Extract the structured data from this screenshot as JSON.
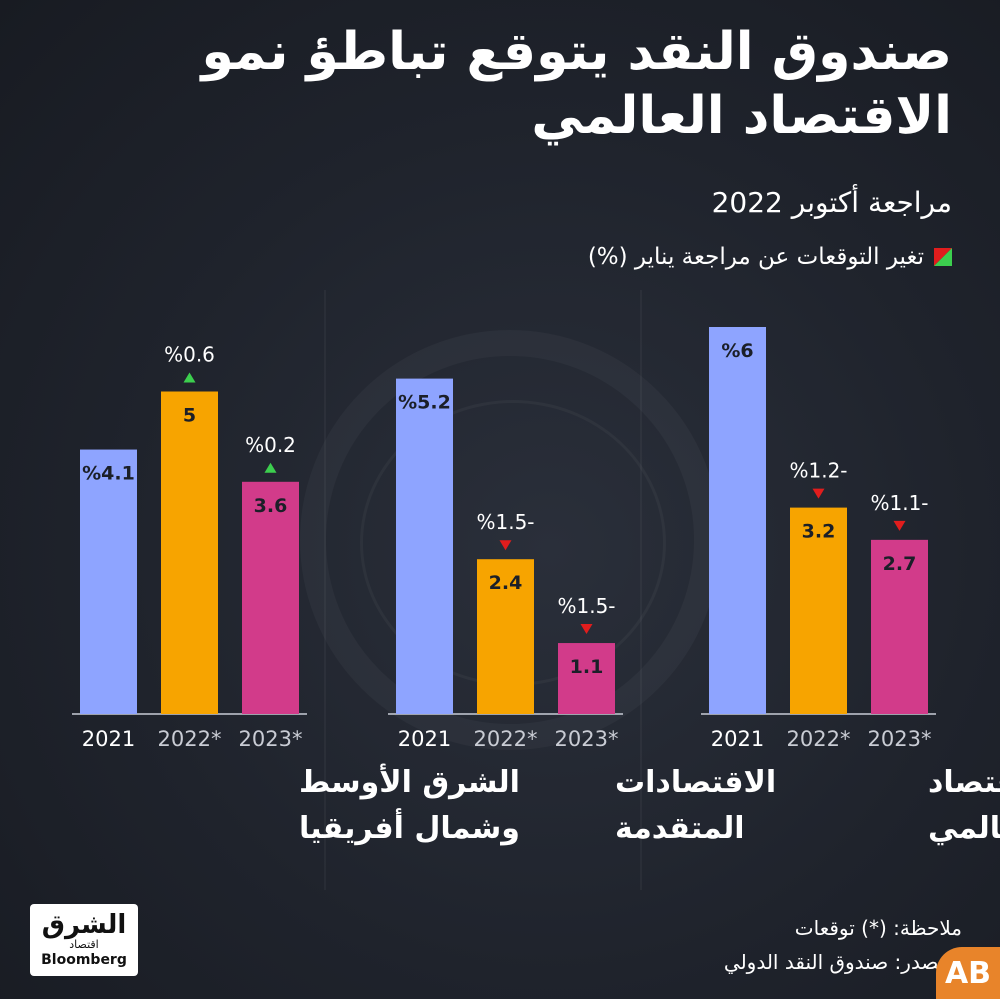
{
  "title": "صندوق النقد يتوقع تباطؤ نمو الاقتصاد العالمي",
  "subtitle": "مراجعة أكتوبر 2022",
  "legend": {
    "label": "تغير التوقعات عن مراجعة يناير (%)"
  },
  "colors": {
    "bar_2021": "#8ea4ff",
    "bar_2022": "#f7a400",
    "bar_2023": "#d23b8a",
    "up": "#3ccf4e",
    "down": "#e11d1d"
  },
  "chart_data": {
    "type": "bar",
    "title": "صندوق النقد يتوقع تباطؤ نمو الاقتصاد العالمي",
    "subtitle": "مراجعة أكتوبر 2022",
    "categories": [
      "2021",
      "2022*",
      "2023*"
    ],
    "groups": [
      {
        "name": "الاقتصاد العالمي",
        "name_lines": [
          "الاقتصاد",
          "العالمي"
        ],
        "values": [
          6,
          3.2,
          2.7
        ],
        "value_labels": [
          "%6",
          "3.2",
          "2.7"
        ],
        "changes": [
          null,
          -1.2,
          -1.1
        ],
        "change_labels": [
          "",
          "%1.2-",
          "%1.1-"
        ]
      },
      {
        "name": "الاقتصادات المتقدمة",
        "name_lines": [
          "الاقتصادات",
          "المتقدمة"
        ],
        "values": [
          5.2,
          2.4,
          1.1
        ],
        "value_labels": [
          "%5.2",
          "2.4",
          "1.1"
        ],
        "changes": [
          null,
          -1.5,
          -1.5
        ],
        "change_labels": [
          "",
          "%1.5-",
          "%1.5-"
        ]
      },
      {
        "name": "الشرق الأوسط وشمال أفريقيا",
        "name_lines": [
          "الشرق الأوسط",
          "وشمال أفريقيا"
        ],
        "values": [
          4.1,
          5,
          3.6
        ],
        "value_labels": [
          "%4.1",
          "5",
          "3.6"
        ],
        "changes": [
          null,
          0.6,
          0.2
        ],
        "change_labels": [
          "",
          "%0.6",
          "%0.2"
        ]
      }
    ]
  },
  "footer": {
    "note": "ملاحظة: (*) توقعات",
    "source": "المصدر: صندوق النقد الدولي"
  },
  "logo": {
    "ar": "الشرق",
    "ar_sub": "اقتصاد",
    "en": "Bloomberg"
  },
  "badge": "AB"
}
